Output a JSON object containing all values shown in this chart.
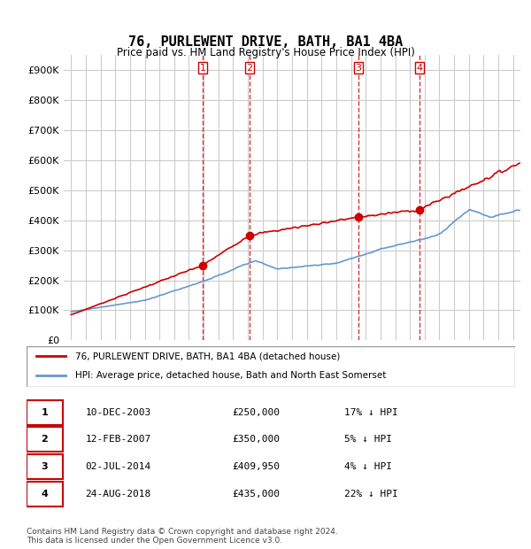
{
  "title": "76, PURLEWENT DRIVE, BATH, BA1 4BA",
  "subtitle": "Price paid vs. HM Land Registry's House Price Index (HPI)",
  "legend_line1": "76, PURLEWENT DRIVE, BATH, BA1 4BA (detached house)",
  "legend_line2": "HPI: Average price, detached house, Bath and North East Somerset",
  "footer1": "Contains HM Land Registry data © Crown copyright and database right 2024.",
  "footer2": "This data is licensed under the Open Government Licence v3.0.",
  "sales": [
    {
      "num": 1,
      "date": "10-DEC-2003",
      "price": 250000,
      "pct": "17%",
      "dir": "↓",
      "x_year": 2003.94
    },
    {
      "num": 2,
      "date": "12-FEB-2007",
      "price": 350000,
      "pct": "5%",
      "dir": "↓",
      "x_year": 2007.12
    },
    {
      "num": 3,
      "date": "02-JUL-2014",
      "price": 409950,
      "pct": "4%",
      "dir": "↓",
      "x_year": 2014.5
    },
    {
      "num": 4,
      "date": "24-AUG-2018",
      "price": 435000,
      "pct": "22%",
      "dir": "↓",
      "x_year": 2018.65
    }
  ],
  "sale_prices": [
    250000,
    350000,
    409950,
    435000
  ],
  "sale_years": [
    2003.94,
    2007.12,
    2014.5,
    2018.65
  ],
  "ylim": [
    0,
    950000
  ],
  "xlim_start": 1994.5,
  "xlim_end": 2025.5,
  "red_color": "#cc0000",
  "blue_color": "#6699cc",
  "grid_color": "#cccccc",
  "bg_color": "#ffffff"
}
